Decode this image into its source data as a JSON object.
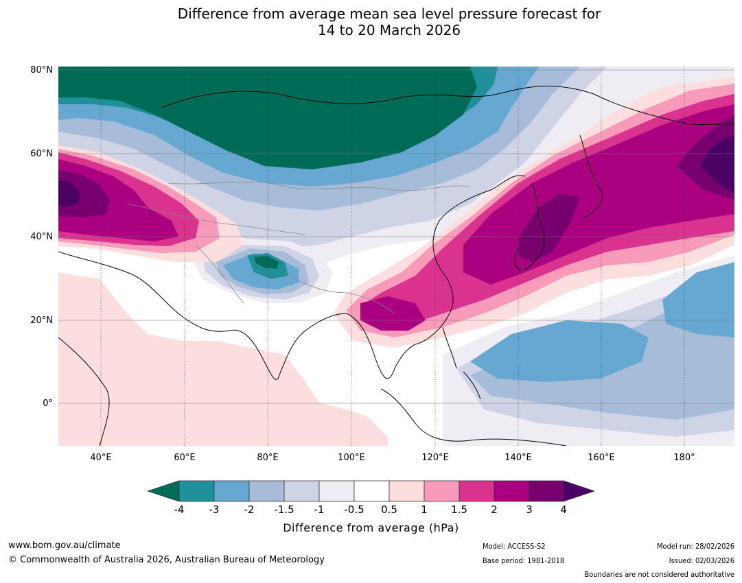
{
  "title": {
    "line1": "Difference from average mean sea level pressure forecast for",
    "line2": "14 to 20 March 2026"
  },
  "map": {
    "lat_labels": [
      "80°N",
      "60°N",
      "40°N",
      "20°N",
      "0°"
    ],
    "lon_labels": [
      "40°E",
      "60°E",
      "80°E",
      "100°E",
      "120°E",
      "140°E",
      "160°E",
      "180°"
    ],
    "colors": {
      "lt4": "#006b57",
      "m4_3": "#1f8f9a",
      "m3_2": "#66a8d1",
      "m2_15": "#a6bcd9",
      "m15_1": "#cfd3e6",
      "m1_05": "#efecf3",
      "neutral": "#ffffff",
      "p05_1": "#fcdedf",
      "p1_15": "#f89bbb",
      "p15_2": "#d9338f",
      "p2_3": "#ab0080",
      "p3_4": "#78006e",
      "gt4": "#4a0065"
    }
  },
  "colorbar": {
    "ticks": [
      "-4",
      "-3",
      "-2",
      "-1.5",
      "-1",
      "-0.5",
      "0.5",
      "1",
      "1.5",
      "2",
      "3",
      "4"
    ],
    "label": "Difference from average (hPa)"
  },
  "footer": {
    "url": "www.bom.gov.au/climate",
    "copyright": "© Commonwealth of Australia 2026, Australian Bureau of Meteorology",
    "model": "Model: ACCESS-S2",
    "base_period": "Base period: 1981-2018",
    "model_run": "Model run: 28/02/2026",
    "issued": "Issued: 02/03/2026",
    "disclaimer": "Boundaries are not considered authoritative"
  }
}
